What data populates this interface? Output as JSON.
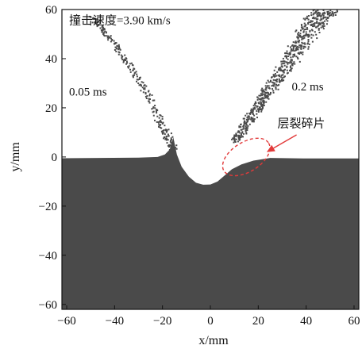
{
  "chart_data": {
    "type": "scatter",
    "title": "",
    "xlabel": "x/mm",
    "ylabel": "y/mm",
    "xlim": [
      -62,
      62
    ],
    "ylim": [
      -62,
      60
    ],
    "x_ticks": [
      -60,
      -40,
      -20,
      0,
      20,
      40,
      60
    ],
    "y_ticks": [
      -60,
      -40,
      -20,
      0,
      20,
      40,
      60
    ],
    "x_tick_labels": [
      "−60",
      "−40",
      "−20",
      "0",
      "20",
      "40",
      "60"
    ],
    "y_tick_labels": [
      "−60",
      "−40",
      "−20",
      "0",
      "20",
      "40",
      "60"
    ],
    "grid": false,
    "legend": "none",
    "series": [
      {
        "type": "area",
        "color": "#4a4a4a",
        "outline": [
          [
            -62,
            -0.5
          ],
          [
            -30,
            -0.3
          ],
          [
            -22,
            0
          ],
          [
            -19,
            1
          ],
          [
            -17,
            3
          ],
          [
            -16,
            6
          ],
          [
            -15.5,
            8
          ],
          [
            -14,
            1
          ],
          [
            -12,
            -4
          ],
          [
            -9,
            -8
          ],
          [
            -6,
            -10.5
          ],
          [
            -3,
            -11.3
          ],
          [
            0,
            -11.2
          ],
          [
            3,
            -10
          ],
          [
            6,
            -7.5
          ],
          [
            9,
            -5
          ],
          [
            13,
            -3
          ],
          [
            18,
            -1.5
          ],
          [
            25,
            -0.4
          ],
          [
            40,
            -0.6
          ],
          [
            62,
            -0.6
          ]
        ]
      },
      {
        "type": "scatter",
        "name": "",
        "color": "#4a4a4a",
        "left_plume_x": [
          -49.9,
          -48.3,
          -46.1,
          -44.6,
          -42.7,
          -39.8,
          -38.1,
          -35.7,
          -33.5,
          -31.2,
          -28.6,
          -26.3,
          -24.1,
          -22.5,
          -21.0,
          -19.7,
          -18.2,
          -17.3,
          -16.4,
          -15.8
        ],
        "left_plume_y": [
          57.5,
          55.4,
          53.1,
          51.0,
          48.9,
          45.6,
          42.7,
          39.8,
          36.6,
          33.1,
          29.4,
          25.7,
          21.5,
          17.8,
          14.2,
          11.6,
          9.1,
          7.0,
          5.1,
          3.6
        ],
        "right_plume_x": [
          10.4,
          12.1,
          14.0,
          16.2,
          18.7,
          20.4,
          22.6,
          24.9,
          27.3,
          29.6,
          31.7,
          33.9,
          35.8,
          37.4,
          39.6,
          41.8,
          43.5,
          45.2,
          46.9,
          48.7
        ],
        "right_plume_y": [
          6.8,
          9.6,
          12.9,
          16.1,
          19.4,
          22.1,
          25.3,
          28.6,
          31.7,
          35.1,
          38.4,
          41.3,
          44.2,
          47.1,
          50.0,
          52.8,
          55.1,
          57.2,
          58.6,
          59.6
        ]
      }
    ],
    "annotations": [
      {
        "text": "撞击速度=3.90 km/s",
        "x": -59,
        "y": 54
      },
      {
        "text": "0.05 ms",
        "x": -59,
        "y": 25
      },
      {
        "text": "0.2 ms",
        "x": 34,
        "y": 27
      },
      {
        "text": "层裂碎片",
        "x": 28,
        "y": 12
      }
    ],
    "highlight": {
      "type": "ellipse",
      "center": [
        15,
        0
      ],
      "radius_x": 11,
      "radius_y": 6,
      "rotation_deg": -32,
      "color": "#e23a3a",
      "dashed": true
    },
    "arrow": {
      "from": [
        36,
        9
      ],
      "to": [
        23.5,
        2
      ],
      "color": "#e23a3a"
    }
  }
}
